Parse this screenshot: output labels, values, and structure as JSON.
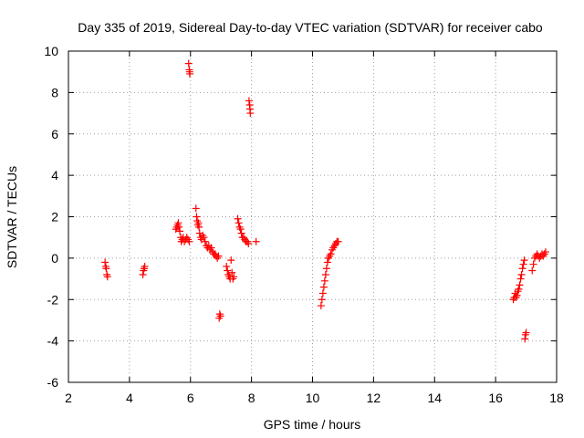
{
  "chart_data": {
    "type": "scatter",
    "title": "Day 335 of 2019, Sidereal Day-to-day VTEC variation (SDTVAR) for receiver cabo",
    "xlabel": "GPS time / hours",
    "ylabel": "SDTVAR / TECUs",
    "xlim": [
      2,
      18
    ],
    "ylim": [
      -6,
      10
    ],
    "x_ticks": [
      2,
      4,
      6,
      8,
      10,
      12,
      14,
      16,
      18
    ],
    "y_ticks": [
      -6,
      -4,
      -2,
      0,
      2,
      4,
      6,
      8,
      10
    ],
    "grid": true,
    "marker": "+",
    "marker_color": "#ff0000",
    "series": [
      {
        "name": "SDTVAR",
        "x": [
          3.2,
          3.22,
          3.24,
          3.26,
          3.28,
          4.44,
          4.46,
          4.48,
          4.5,
          5.52,
          5.55,
          5.58,
          5.6,
          5.62,
          5.65,
          5.68,
          5.7,
          5.73,
          5.76,
          5.8,
          5.84,
          5.88,
          5.92,
          5.96,
          5.94,
          5.96,
          5.97,
          5.98,
          6.18,
          6.2,
          6.22,
          6.24,
          6.26,
          6.28,
          6.3,
          6.33,
          6.36,
          6.4,
          6.44,
          6.48,
          6.52,
          6.56,
          6.6,
          6.64,
          6.68,
          6.72,
          6.76,
          6.8,
          6.84,
          6.88,
          6.92,
          6.94,
          6.96,
          6.98,
          7.18,
          7.21,
          7.24,
          7.27,
          7.3,
          7.33,
          7.36,
          7.39,
          7.42,
          7.55,
          7.58,
          7.61,
          7.64,
          7.67,
          7.7,
          7.74,
          7.78,
          7.82,
          7.86,
          7.9,
          7.92,
          7.94,
          7.95,
          7.96,
          8.15,
          10.28,
          10.31,
          10.34,
          10.37,
          10.4,
          10.43,
          10.46,
          10.49,
          10.52,
          10.56,
          10.6,
          10.64,
          10.68,
          10.72,
          10.76,
          10.8,
          10.84,
          16.58,
          16.61,
          16.64,
          16.67,
          16.7,
          16.73,
          16.76,
          16.79,
          16.82,
          16.85,
          16.88,
          16.91,
          16.94,
          16.96,
          16.98,
          17.0,
          17.2,
          17.24,
          17.28,
          17.32,
          17.36,
          17.4,
          17.44,
          17.48,
          17.52,
          17.56,
          17.6,
          17.64
        ],
        "y": [
          -0.2,
          -0.4,
          -0.5,
          -0.8,
          -0.9,
          -0.8,
          -0.6,
          -0.5,
          -0.4,
          1.4,
          1.5,
          1.6,
          1.7,
          1.5,
          1.3,
          1.0,
          0.8,
          0.9,
          1.0,
          0.8,
          0.9,
          1.0,
          0.9,
          0.8,
          9.4,
          9.1,
          9.0,
          8.9,
          2.4,
          2.0,
          1.8,
          1.6,
          1.7,
          1.5,
          1.2,
          1.0,
          0.9,
          1.1,
          1.0,
          0.8,
          0.6,
          0.5,
          0.6,
          0.4,
          0.5,
          0.3,
          0.2,
          0.2,
          0.1,
          0.0,
          0.1,
          -2.9,
          -2.7,
          -2.8,
          -0.4,
          -0.6,
          -0.8,
          -0.9,
          -1.0,
          -0.1,
          -0.7,
          -1.0,
          -0.9,
          1.9,
          1.7,
          1.5,
          1.4,
          1.2,
          1.0,
          1.0,
          0.9,
          0.8,
          0.8,
          0.7,
          7.6,
          7.4,
          7.2,
          7.0,
          0.8,
          -2.3,
          -2.0,
          -1.7,
          -1.4,
          -1.1,
          -0.8,
          -0.5,
          -0.2,
          0.0,
          0.1,
          0.2,
          0.4,
          0.5,
          0.6,
          0.7,
          0.8,
          0.8,
          -2.0,
          -1.9,
          -1.7,
          -1.9,
          -1.8,
          -1.6,
          -1.5,
          -1.3,
          -1.0,
          -0.8,
          -0.5,
          -0.3,
          -0.1,
          -3.9,
          -3.7,
          -3.6,
          -0.6,
          -0.3,
          0.0,
          0.1,
          0.2,
          0.1,
          0.0,
          0.1,
          0.2,
          0.1,
          0.2,
          0.3
        ]
      }
    ]
  }
}
